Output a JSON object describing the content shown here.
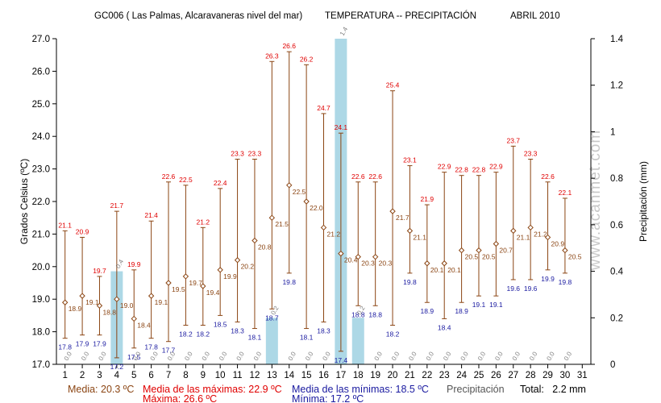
{
  "header": {
    "station": "GC006 ( Las Palmas, Alcaravaneras nivel del mar)",
    "kind": "TEMPERATURA -- PRECIPITACIÓN",
    "period": "ABRIL 2010"
  },
  "axes": {
    "left_label": "Grados Celsius (ºC)",
    "right_label": "Precipitación (mm)"
  },
  "watermark": "www.acanmet.com",
  "summary": {
    "media": "Media: 20.3 ºC",
    "media_maximas": "Media de las máximas: 22.9 ºC",
    "maxima": "Máxima: 26.6 ºC",
    "media_minimas": "Media de las mínimas: 18.5 ºC",
    "minima": "Mínima: 17.2 ºC",
    "precip_label": "Precipitación",
    "total": "Total:   2.2 mm"
  },
  "colors": {
    "max": "#e00000",
    "min": "#1a1aa0",
    "mean": "#8b4513",
    "bar": "#add8e6",
    "precip_label": "#808080"
  },
  "chart_data": {
    "type": "bar+range",
    "x": [
      1,
      2,
      3,
      4,
      5,
      6,
      7,
      8,
      9,
      10,
      11,
      12,
      13,
      14,
      15,
      16,
      17,
      18,
      19,
      20,
      21,
      22,
      23,
      24,
      25,
      26,
      27,
      28,
      29,
      30
    ],
    "x_ticks": [
      "1",
      "2",
      "3",
      "4",
      "5",
      "6",
      "7",
      "8",
      "9",
      "10",
      "11",
      "12",
      "13",
      "14",
      "15",
      "16",
      "17",
      "18",
      "19",
      "20",
      "21",
      "22",
      "23",
      "24",
      "25",
      "26",
      "27",
      "28",
      "29",
      "30",
      "31"
    ],
    "xlim": [
      0.5,
      31.5
    ],
    "y_left": {
      "range": [
        17,
        27
      ],
      "ticks": [
        "17.0",
        "18.0",
        "19.0",
        "20.0",
        "21.0",
        "22.0",
        "23.0",
        "24.0",
        "25.0",
        "26.0",
        "27.0"
      ]
    },
    "y_right": {
      "range": [
        0,
        1.4
      ],
      "ticks": [
        "0",
        "0.2",
        "0.4",
        "0.6",
        "0.8",
        "1",
        "1.2",
        "1.4"
      ]
    },
    "max": [
      21.1,
      20.9,
      19.7,
      21.7,
      19.9,
      21.4,
      22.6,
      22.5,
      21.2,
      22.4,
      23.3,
      23.3,
      26.3,
      26.6,
      26.2,
      24.7,
      24.1,
      22.6,
      22.6,
      25.4,
      23.1,
      21.9,
      22.9,
      22.8,
      22.8,
      22.9,
      23.7,
      23.3,
      22.6,
      22.1
    ],
    "min": [
      17.8,
      17.9,
      17.9,
      17.2,
      17.5,
      17.8,
      17.7,
      18.2,
      18.2,
      18.5,
      18.3,
      18.1,
      18.7,
      19.8,
      18.1,
      18.3,
      17.4,
      18.8,
      18.8,
      18.2,
      19.8,
      18.9,
      18.4,
      18.9,
      19.1,
      19.1,
      19.6,
      19.6,
      19.9,
      19.8
    ],
    "mean": [
      18.9,
      19.1,
      18.8,
      19.0,
      18.4,
      19.1,
      19.5,
      19.7,
      19.4,
      19.9,
      20.2,
      20.8,
      21.5,
      22.5,
      22.0,
      21.2,
      20.4,
      20.3,
      20.3,
      21.7,
      21.1,
      20.1,
      20.1,
      20.5,
      20.5,
      20.7,
      21.1,
      21.2,
      20.9,
      20.5
    ],
    "precip": [
      0.0,
      0.0,
      0.0,
      0.4,
      0.0,
      0.0,
      0.0,
      0.0,
      0.0,
      0.0,
      0.0,
      0.0,
      0.2,
      0.0,
      0.0,
      0.0,
      1.4,
      0.2,
      0.0,
      0.0,
      0.0,
      0.0,
      0.0,
      0.0,
      0.0,
      0.0,
      0.0,
      0.0,
      0.0,
      0.0
    ],
    "precip_labels": [
      "0.0",
      "0.0",
      "0.0",
      "0.4",
      "0.0",
      "0.0",
      "0.0",
      "0.0",
      "0.0",
      "0.0",
      "0.0",
      "0.0",
      "0.2",
      "0.0",
      "0.0",
      "0.0",
      "1.4",
      "0.2",
      "0.0",
      "0.0",
      "0.0",
      "0.0",
      "0.0",
      "0.0",
      "0.0",
      "0.0",
      "0.0",
      "0.0",
      "0.0",
      "0.0"
    ]
  }
}
